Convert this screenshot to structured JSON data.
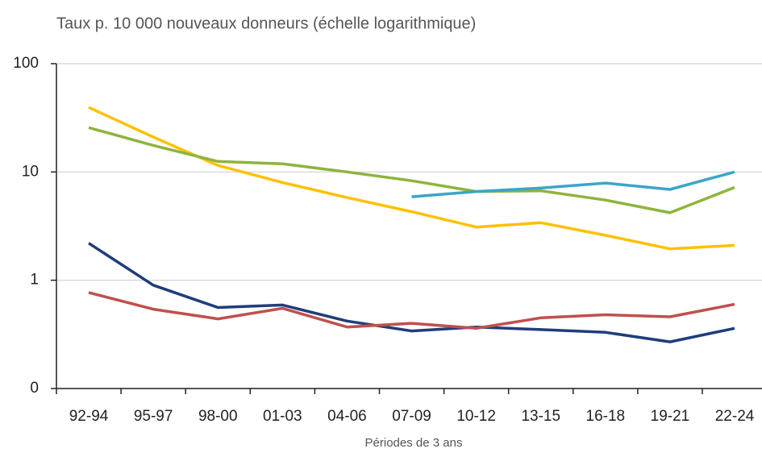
{
  "chart_data": {
    "type": "line",
    "title": "Taux p. 10 000 nouveaux donneurs (échelle logarithmique)",
    "x_label": "Périodes de 3 ans",
    "categories": [
      "92-94",
      "95-97",
      "98-00",
      "01-03",
      "04-06",
      "07-09",
      "10-12",
      "13-15",
      "16-18",
      "19-21",
      "22-24"
    ],
    "log_y": true,
    "ylim": [
      0.1,
      100
    ],
    "yticks": [
      {
        "value": 0.1,
        "label": "0"
      },
      1,
      10,
      100
    ],
    "grid": true,
    "series": [
      {
        "color": "#ffc000",
        "values": [
          39.5,
          21,
          11.5,
          8,
          5.8,
          4.3,
          3.1,
          3.4,
          2.6,
          1.95,
          2.1
        ]
      },
      {
        "color": "#8db43e",
        "values": [
          25.7,
          17.6,
          12.5,
          11.9,
          10,
          8.3,
          6.6,
          6.7,
          5.5,
          4.2,
          7.2
        ]
      },
      {
        "color": "#3ba6c8",
        "values": [
          null,
          null,
          null,
          null,
          null,
          5.9,
          6.6,
          7.1,
          7.9,
          6.9,
          10
        ]
      },
      {
        "color": "#1f3d7a",
        "values": [
          2.2,
          0.9,
          0.56,
          0.59,
          0.42,
          0.34,
          0.37,
          0.35,
          0.33,
          0.27,
          0.36
        ]
      },
      {
        "color": "#c0504d",
        "values": [
          0.77,
          0.54,
          0.44,
          0.55,
          0.37,
          0.4,
          0.36,
          0.45,
          0.48,
          0.46,
          0.6
        ]
      }
    ]
  }
}
